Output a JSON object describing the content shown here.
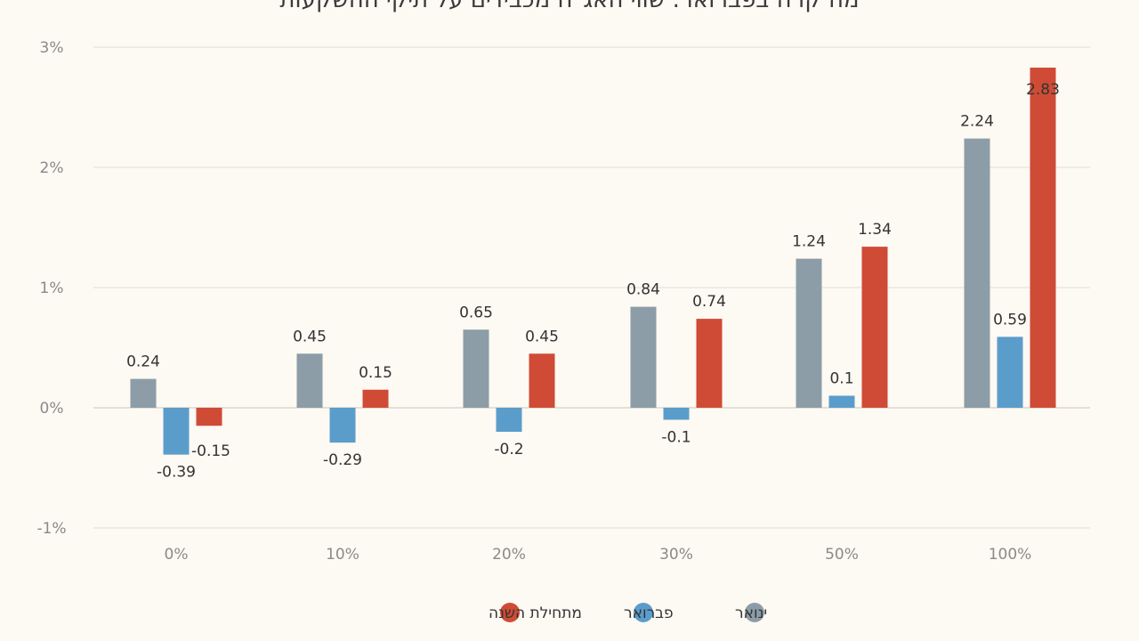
{
  "chart_data": {
    "type": "bar",
    "title": "מה קרה בפברואר: שווי האג\"ח מכבידים על תיקי ההשקעות",
    "categories": [
      "0%",
      "10%",
      "20%",
      "30%",
      "50%",
      "100%"
    ],
    "series": [
      {
        "name": "ינואר",
        "color": "#8c9da7",
        "values": [
          0.24,
          0.45,
          0.65,
          0.84,
          1.24,
          2.24
        ],
        "labels": [
          "0.24",
          "0.45",
          "0.65",
          "0.84",
          "1.24",
          "2.24"
        ]
      },
      {
        "name": "פברואר",
        "color": "#5a9dcb",
        "values": [
          -0.39,
          -0.29,
          -0.2,
          -0.1,
          0.1,
          0.59
        ],
        "labels": [
          "-0.39",
          "-0.29",
          "-0.2",
          "-0.1",
          "0.1",
          "0.59"
        ]
      },
      {
        "name": "מתחילת השנה",
        "color": "#cf4b36",
        "values": [
          -0.15,
          0.15,
          0.45,
          0.74,
          1.34,
          2.83
        ],
        "labels": [
          "-0.15",
          "0.15",
          "0.45",
          "0.74",
          "1.34",
          "2.83"
        ]
      }
    ],
    "y_ticks": [
      {
        "value": 3,
        "label": "3%"
      },
      {
        "value": 2,
        "label": "2%"
      },
      {
        "value": 1,
        "label": "1%"
      },
      {
        "value": 0,
        "label": "0%"
      },
      {
        "value": -1,
        "label": "-1%"
      }
    ],
    "ylim": [
      -1,
      3
    ],
    "xlabel": "",
    "ylabel": "",
    "grid": true,
    "legend_position": "bottom-center",
    "legend_order": [
      2,
      1,
      0
    ]
  }
}
